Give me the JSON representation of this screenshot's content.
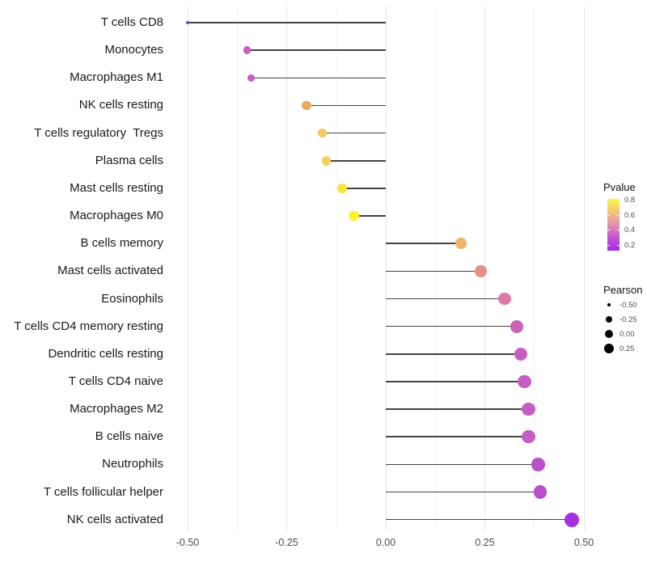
{
  "chart_data": {
    "type": "lollipop",
    "orientation": "horizontal",
    "title": "",
    "xlabel": "",
    "ylabel": "",
    "xlim": [
      -0.55,
      0.54
    ],
    "x_tick_labels": [
      "-0.50",
      "-0.25",
      "0.00",
      "0.25",
      "0.50"
    ],
    "x_major_ticks": [
      -0.5,
      -0.25,
      0.0,
      0.25,
      0.5
    ],
    "x_minor_ticks": [
      -0.375,
      -0.125,
      0.125,
      0.375
    ],
    "grid": true,
    "baseline_x": 0,
    "points": [
      {
        "label": "T cells CD8",
        "pearson": -0.5,
        "pvalue_approx": 0.15,
        "color": "#8b2fd6",
        "radius": 2.2
      },
      {
        "label": "Monocytes",
        "pearson": -0.35,
        "pvalue_approx": 0.45,
        "color": "#c75fc3",
        "radius": 4.7
      },
      {
        "label": "Macrophages M1",
        "pearson": -0.34,
        "pvalue_approx": 0.45,
        "color": "#c75fc3",
        "radius": 4.7
      },
      {
        "label": "NK cells resting",
        "pearson": -0.2,
        "pvalue_approx": 0.65,
        "color": "#eda760",
        "radius": 5.7
      },
      {
        "label": "T cells regulatory  Tregs",
        "pearson": -0.16,
        "pvalue_approx": 0.72,
        "color": "#f2c95f",
        "radius": 5.7
      },
      {
        "label": "Plasma cells",
        "pearson": -0.15,
        "pvalue_approx": 0.74,
        "color": "#f4d158",
        "radius": 5.9
      },
      {
        "label": "Mast cells resting",
        "pearson": -0.11,
        "pvalue_approx": 0.78,
        "color": "#f8e53c",
        "radius": 6.2
      },
      {
        "label": "Macrophages M0",
        "pearson": -0.08,
        "pvalue_approx": 0.84,
        "color": "#fdf32b",
        "radius": 6.4
      },
      {
        "label": "B cells memory",
        "pearson": 0.19,
        "pvalue_approx": 0.68,
        "color": "#eeb467",
        "radius": 6.8
      },
      {
        "label": "Mast cells activated",
        "pearson": 0.24,
        "pvalue_approx": 0.58,
        "color": "#e59089",
        "radius": 7.2
      },
      {
        "label": "Eosinophils",
        "pearson": 0.3,
        "pvalue_approx": 0.5,
        "color": "#d97aa8",
        "radius": 7.6
      },
      {
        "label": "T cells CD4 memory resting",
        "pearson": 0.33,
        "pvalue_approx": 0.46,
        "color": "#cb63b9",
        "radius": 7.9
      },
      {
        "label": "Dendritic cells resting",
        "pearson": 0.34,
        "pvalue_approx": 0.45,
        "color": "#c75fc0",
        "radius": 8.0
      },
      {
        "label": "T cells CD4 naive",
        "pearson": 0.35,
        "pvalue_approx": 0.44,
        "color": "#c75cc2",
        "radius": 8.1
      },
      {
        "label": "Macrophages M2",
        "pearson": 0.36,
        "pvalue_approx": 0.44,
        "color": "#c55ec3",
        "radius": 8.2
      },
      {
        "label": "B cells naive",
        "pearson": 0.36,
        "pvalue_approx": 0.44,
        "color": "#c55ec3",
        "radius": 8.2
      },
      {
        "label": "Neutrophils",
        "pearson": 0.385,
        "pvalue_approx": 0.4,
        "color": "#bb50cb",
        "radius": 8.3
      },
      {
        "label": "T cells follicular helper",
        "pearson": 0.39,
        "pvalue_approx": 0.4,
        "color": "#ba4fcd",
        "radius": 8.3
      },
      {
        "label": "NK cells activated",
        "pearson": 0.47,
        "pvalue_approx": 0.25,
        "color": "#a432dd",
        "radius": 9.2
      }
    ],
    "legend": {
      "pvalue": {
        "title": "Pvalue",
        "tick_labels": [
          "0.8",
          "0.6",
          "0.4",
          "0.2"
        ],
        "gradient_top_to_bottom": [
          "#f9f53b",
          "#f3c57f",
          "#e291ae",
          "#c253d8",
          "#9b2fe3"
        ],
        "range": [
          0.15,
          0.85
        ]
      },
      "pearson": {
        "title": "Pearson",
        "entries": [
          {
            "label": "-0.50",
            "radius": 1.8
          },
          {
            "label": "-0.25",
            "radius": 4.2
          },
          {
            "label": "0.00",
            "radius": 5.2
          },
          {
            "label": "0.25",
            "radius": 6.2
          }
        ]
      }
    }
  },
  "colors": {
    "stem": "#434343",
    "grid_major": "#e7e7e7",
    "grid_minor": "#f4f4f4",
    "axis_text": "#4d4d4d",
    "label_text": "#1a1a1a",
    "background": "#ffffff"
  }
}
